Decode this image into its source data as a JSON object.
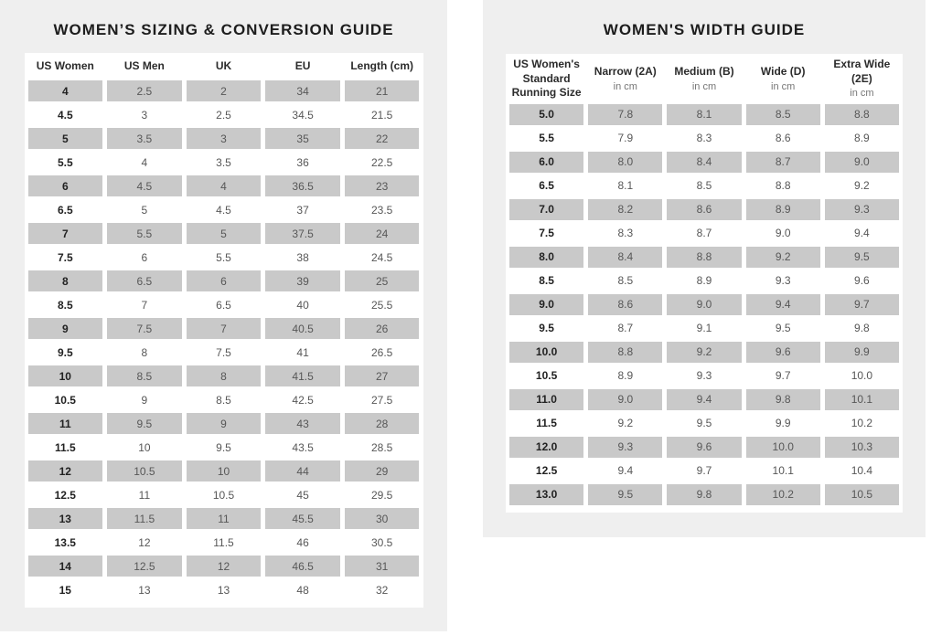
{
  "colors": {
    "panel_background": "#efefef",
    "shaded_cell": "#c9c9c9",
    "dark_text": "#1d1d1d",
    "muted_text": "#575757"
  },
  "left_panel": {
    "title": "WOMEN’S SIZING & CONVERSION GUIDE",
    "table": {
      "headers": [
        "US Women",
        "US Men",
        "UK",
        "EU",
        "Length (cm)"
      ],
      "rows": [
        [
          "4",
          "2.5",
          "2",
          "34",
          "21"
        ],
        [
          "4.5",
          "3",
          "2.5",
          "34.5",
          "21.5"
        ],
        [
          "5",
          "3.5",
          "3",
          "35",
          "22"
        ],
        [
          "5.5",
          "4",
          "3.5",
          "36",
          "22.5"
        ],
        [
          "6",
          "4.5",
          "4",
          "36.5",
          "23"
        ],
        [
          "6.5",
          "5",
          "4.5",
          "37",
          "23.5"
        ],
        [
          "7",
          "5.5",
          "5",
          "37.5",
          "24"
        ],
        [
          "7.5",
          "6",
          "5.5",
          "38",
          "24.5"
        ],
        [
          "8",
          "6.5",
          "6",
          "39",
          "25"
        ],
        [
          "8.5",
          "7",
          "6.5",
          "40",
          "25.5"
        ],
        [
          "9",
          "7.5",
          "7",
          "40.5",
          "26"
        ],
        [
          "9.5",
          "8",
          "7.5",
          "41",
          "26.5"
        ],
        [
          "10",
          "8.5",
          "8",
          "41.5",
          "27"
        ],
        [
          "10.5",
          "9",
          "8.5",
          "42.5",
          "27.5"
        ],
        [
          "11",
          "9.5",
          "9",
          "43",
          "28"
        ],
        [
          "11.5",
          "10",
          "9.5",
          "43.5",
          "28.5"
        ],
        [
          "12",
          "10.5",
          "10",
          "44",
          "29"
        ],
        [
          "12.5",
          "11",
          "10.5",
          "45",
          "29.5"
        ],
        [
          "13",
          "11.5",
          "11",
          "45.5",
          "30"
        ],
        [
          "13.5",
          "12",
          "11.5",
          "46",
          "30.5"
        ],
        [
          "14",
          "12.5",
          "12",
          "46.5",
          "31"
        ],
        [
          "15",
          "13",
          "13",
          "48",
          "32"
        ]
      ]
    }
  },
  "right_panel": {
    "title": "WOMEN'S WIDTH GUIDE",
    "table": {
      "headers": [
        {
          "label": "US Women's Standard Running Size",
          "sub": ""
        },
        {
          "label": "Narrow (2A)",
          "sub": "in cm"
        },
        {
          "label": "Medium (B)",
          "sub": "in cm"
        },
        {
          "label": "Wide (D)",
          "sub": "in cm"
        },
        {
          "label": "Extra Wide (2E)",
          "sub": "in cm"
        }
      ],
      "rows": [
        [
          "5.0",
          "7.8",
          "8.1",
          "8.5",
          "8.8"
        ],
        [
          "5.5",
          "7.9",
          "8.3",
          "8.6",
          "8.9"
        ],
        [
          "6.0",
          "8.0",
          "8.4",
          "8.7",
          "9.0"
        ],
        [
          "6.5",
          "8.1",
          "8.5",
          "8.8",
          "9.2"
        ],
        [
          "7.0",
          "8.2",
          "8.6",
          "8.9",
          "9.3"
        ],
        [
          "7.5",
          "8.3",
          "8.7",
          "9.0",
          "9.4"
        ],
        [
          "8.0",
          "8.4",
          "8.8",
          "9.2",
          "9.5"
        ],
        [
          "8.5",
          "8.5",
          "8.9",
          "9.3",
          "9.6"
        ],
        [
          "9.0",
          "8.6",
          "9.0",
          "9.4",
          "9.7"
        ],
        [
          "9.5",
          "8.7",
          "9.1",
          "9.5",
          "9.8"
        ],
        [
          "10.0",
          "8.8",
          "9.2",
          "9.6",
          "9.9"
        ],
        [
          "10.5",
          "8.9",
          "9.3",
          "9.7",
          "10.0"
        ],
        [
          "11.0",
          "9.0",
          "9.4",
          "9.8",
          "10.1"
        ],
        [
          "11.5",
          "9.2",
          "9.5",
          "9.9",
          "10.2"
        ],
        [
          "12.0",
          "9.3",
          "9.6",
          "10.0",
          "10.3"
        ],
        [
          "12.5",
          "9.4",
          "9.7",
          "10.1",
          "10.4"
        ],
        [
          "13.0",
          "9.5",
          "9.8",
          "10.2",
          "10.5"
        ]
      ]
    }
  }
}
